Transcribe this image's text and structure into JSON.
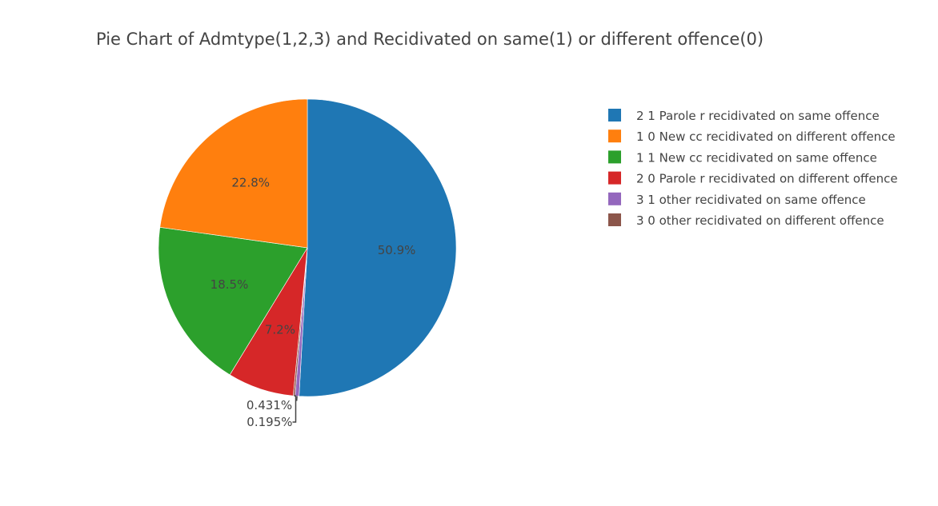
{
  "chart_data": {
    "type": "pie",
    "title": "Pie Chart of Admtype(1,2,3) and Recidivated on same(1) or different offence(0)",
    "slices": [
      {
        "label": "2 1 Parole r recidivated on same offence",
        "value": 50.9,
        "text": "50.9%",
        "color": "#1f77b4"
      },
      {
        "label": "1 0 New cc recidivated on different offence",
        "value": 22.8,
        "text": "22.8%",
        "color": "#ff7f0e"
      },
      {
        "label": "1 1 New cc recidivated on same offence",
        "value": 18.5,
        "text": "18.5%",
        "color": "#2ca02c"
      },
      {
        "label": "2 0 Parole r recidivated on different offence",
        "value": 7.2,
        "text": "7.2%",
        "color": "#d62728"
      },
      {
        "label": "3 1 other recidivated on same offence",
        "value": 0.431,
        "text": "0.431%",
        "color": "#9467bd"
      },
      {
        "label": "3 0 other recidivated on different offence",
        "value": 0.195,
        "text": "0.195%",
        "color": "#8c564b"
      }
    ],
    "draw_order": [
      0,
      4,
      5,
      3,
      2,
      1
    ],
    "direction": "clockwise",
    "start_at": "top",
    "legend_position": "top-right"
  }
}
